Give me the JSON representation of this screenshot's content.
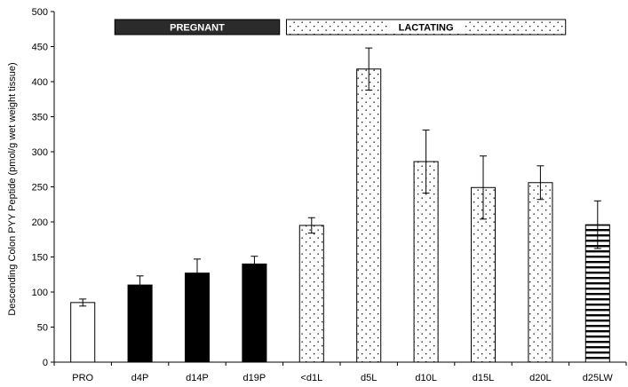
{
  "chart_data": {
    "type": "bar",
    "title": "",
    "xlabel": "",
    "ylabel": "Descending Colon PYY Peptide (pmol/g wet weight tissue)",
    "ylim": [
      0,
      500
    ],
    "yticks": [
      0,
      50,
      100,
      150,
      200,
      250,
      300,
      350,
      400,
      450,
      500
    ],
    "categories": [
      "PRO",
      "d4P",
      "d14P",
      "d19P",
      "<d1L",
      "d5L",
      "d10L",
      "d15L",
      "d20L",
      "d25LW"
    ],
    "values": [
      85,
      110,
      127,
      140,
      195,
      418,
      286,
      249,
      256,
      196
    ],
    "errors": [
      5,
      13,
      20,
      11,
      11,
      30,
      45,
      45,
      24,
      34
    ],
    "fills": [
      "white",
      "black",
      "black",
      "black",
      "dots",
      "dots",
      "dots",
      "dots",
      "dots",
      "hstripes"
    ],
    "grid": false,
    "annotations": [
      {
        "label": "PREGNANT",
        "style": "solid",
        "span": [
          "d4P",
          "d19P"
        ]
      },
      {
        "label": "LACTATING",
        "style": "dots",
        "span": [
          "<d1L",
          "d20L"
        ]
      }
    ],
    "colors": {
      "bar_outline": "#000000",
      "solid_fill": "#000000",
      "band_dark": "#2b2b2b"
    }
  }
}
